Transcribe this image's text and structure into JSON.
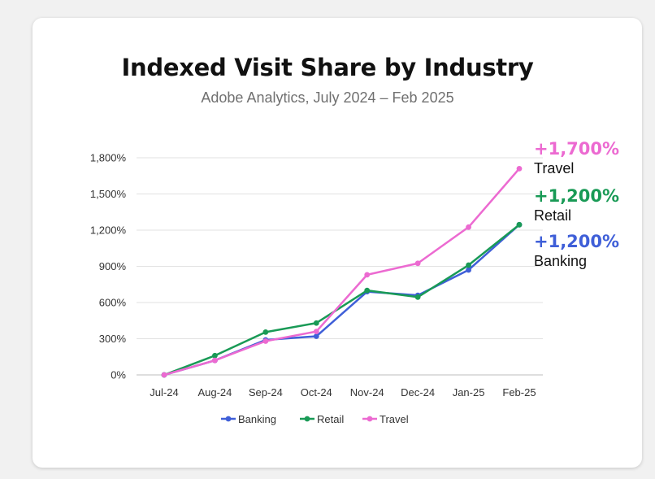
{
  "chart_data": {
    "type": "line",
    "title": "Indexed Visit Share by Industry",
    "subtitle": "Adobe Analytics, July 2024 – Feb 2025",
    "x": [
      "Jul-24",
      "Aug-24",
      "Sep-24",
      "Oct-24",
      "Nov-24",
      "Dec-24",
      "Jan-25",
      "Feb-25"
    ],
    "y_ticks": [
      "0%",
      "300%",
      "600%",
      "900%",
      "1,200%",
      "1,500%",
      "1,800%"
    ],
    "ylim": [
      0,
      1800
    ],
    "grid": true,
    "legend_position": "bottom",
    "series": [
      {
        "name": "Banking",
        "color": "#3f5fd8",
        "values": [
          0,
          120,
          290,
          320,
          690,
          660,
          870,
          1245
        ]
      },
      {
        "name": "Retail",
        "color": "#199a56",
        "values": [
          0,
          160,
          355,
          430,
          700,
          645,
          910,
          1245
        ]
      },
      {
        "name": "Travel",
        "color": "#ec6ad1",
        "values": [
          0,
          120,
          280,
          360,
          830,
          925,
          1225,
          1710
        ]
      }
    ],
    "annotations": [
      {
        "value": "+1,700%",
        "label": "Travel",
        "color": "#ec6ad1"
      },
      {
        "value": "+1,200%",
        "label": "Retail",
        "color": "#199a56"
      },
      {
        "value": "+1,200%",
        "label": "Banking",
        "color": "#3f5fd8"
      }
    ]
  }
}
